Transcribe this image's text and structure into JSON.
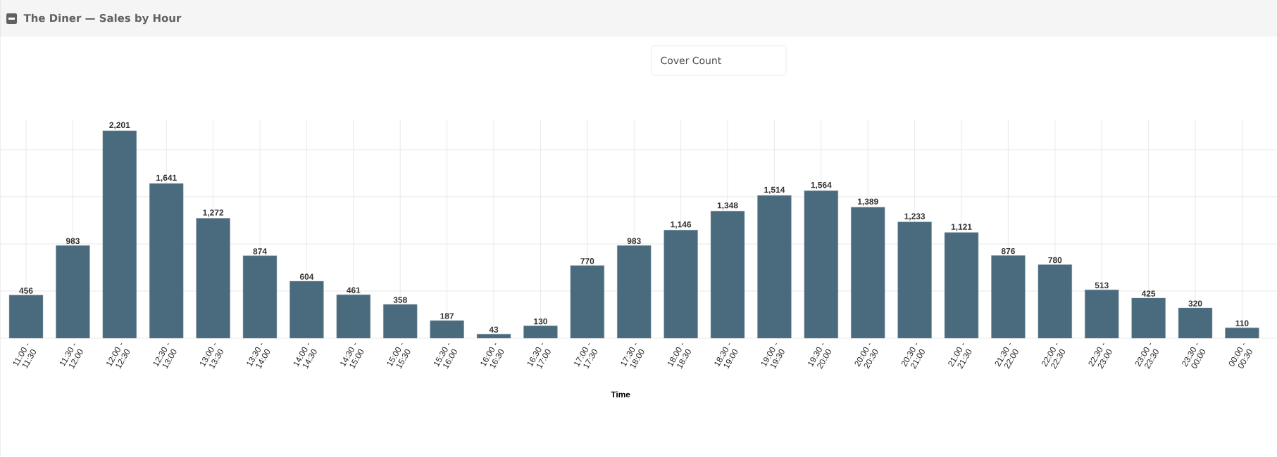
{
  "chart_data": {
    "type": "bar",
    "title": "The Diner — Sales by Hour",
    "xlabel": "Time",
    "annotations": [
      "Cover Count"
    ],
    "categories": [
      "11:00 - 11:30",
      "11:30 - 12:00",
      "12:00 - 12:30",
      "12:30 - 13:00",
      "13:00 - 13:30",
      "13:30 - 14:00",
      "14:00 - 14:30",
      "14:30 - 15:00",
      "15:00 - 15:30",
      "15:30 - 16:00",
      "16:00 - 16:30",
      "16:30 - 17:00",
      "17:00 - 17:30",
      "17:30 - 18:00",
      "18:00 - 18:30",
      "18:30 - 19:00",
      "19:00 - 19:30",
      "19:30 - 20:00",
      "20:00 - 20:30",
      "20:30 - 21:00",
      "21:00 - 21:30",
      "21:30 - 22:00",
      "22:00 - 22:30",
      "22:30 - 23:00",
      "23:00 - 23:30",
      "23:30 - 00:00",
      "00:00 - 00:30"
    ],
    "values": [
      456,
      983,
      2201,
      1641,
      1272,
      874,
      604,
      461,
      358,
      187,
      43,
      130,
      770,
      983,
      1146,
      1348,
      1514,
      1564,
      1389,
      1233,
      1121,
      876,
      780,
      513,
      425,
      320,
      110
    ],
    "value_labels": [
      "456",
      "983",
      "2,201",
      "1,641",
      "1,272",
      "874",
      "604",
      "461",
      "358",
      "187",
      "43",
      "130",
      "770",
      "983",
      "1,146",
      "1,348",
      "1,514",
      "1,564",
      "1,389",
      "1,233",
      "1,121",
      "876",
      "780",
      "513",
      "425",
      "320",
      "110"
    ],
    "color": "#4a6b7e",
    "ylim": [
      0,
      2320
    ],
    "yticks": [
      {
        "value": 0,
        "label": null
      },
      {
        "value": 500,
        "label": null
      },
      {
        "value": 1000,
        "label": null
      },
      {
        "value": 1500,
        "label": null
      },
      {
        "value": 2000,
        "label": null
      }
    ],
    "tick_labels": "x",
    "grid": true
  }
}
